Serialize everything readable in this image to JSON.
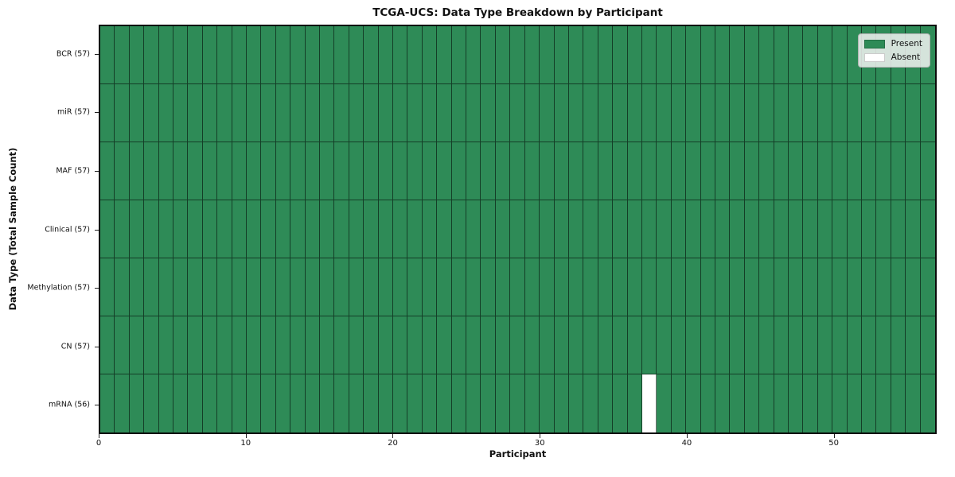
{
  "figure": {
    "title": "TCGA-UCS: Data Type Breakdown by Participant",
    "xlabel": "Participant",
    "ylabel": "Data Type (Total Sample Count)"
  },
  "chart_data": {
    "type": "heatmap",
    "title": "TCGA-UCS: Data Type Breakdown by Participant",
    "xlabel": "Participant",
    "ylabel": "Data Type (Total Sample Count)",
    "n_participants": 57,
    "xlim": [
      0,
      57
    ],
    "x_ticks": [
      0,
      10,
      20,
      30,
      40,
      50
    ],
    "rows": [
      {
        "label": "BCR (57)",
        "data_type": "BCR",
        "total_samples": 57,
        "absent_participants": []
      },
      {
        "label": "miR (57)",
        "data_type": "miR",
        "total_samples": 57,
        "absent_participants": []
      },
      {
        "label": "MAF (57)",
        "data_type": "MAF",
        "total_samples": 57,
        "absent_participants": []
      },
      {
        "label": "Clinical (57)",
        "data_type": "Clinical",
        "total_samples": 57,
        "absent_participants": []
      },
      {
        "label": "Methylation (57)",
        "data_type": "Methylation",
        "total_samples": 57,
        "absent_participants": []
      },
      {
        "label": "CN (57)",
        "data_type": "CN",
        "total_samples": 57,
        "absent_participants": []
      },
      {
        "label": "mRNA (56)",
        "data_type": "mRNA",
        "total_samples": 56,
        "absent_participants": [
          37
        ]
      }
    ],
    "legend": {
      "position": "upper-right",
      "entries": [
        {
          "label": "Present",
          "color": "#2e8b57"
        },
        {
          "label": "Absent",
          "color": "#ffffff"
        }
      ]
    },
    "colors": {
      "present": "#2e8b57",
      "absent": "#ffffff",
      "cell_edge": "#1e4d33",
      "spine": "#0b0b0b"
    },
    "grid": "cell-borders"
  }
}
